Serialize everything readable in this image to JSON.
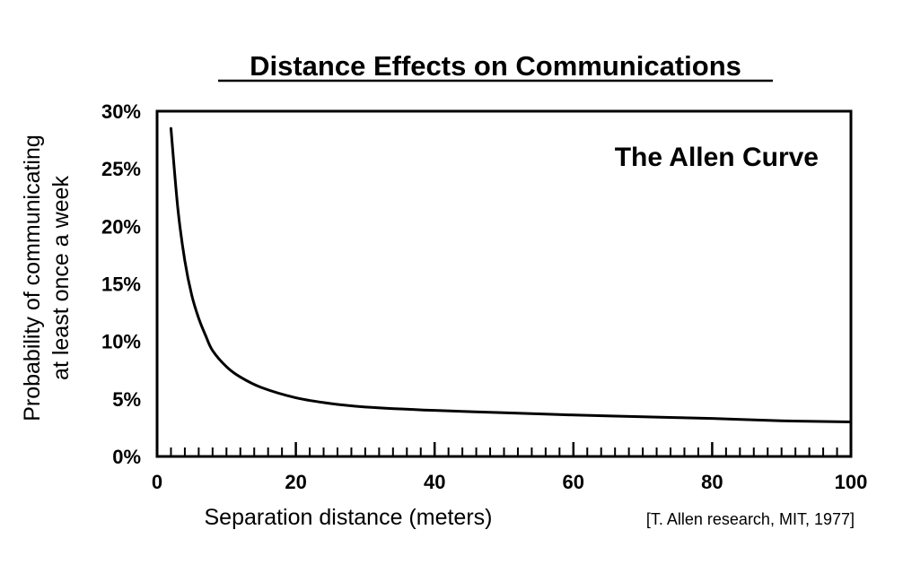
{
  "chart_data": {
    "type": "line",
    "title": "Distance Effects on Communications",
    "annotation": "The Allen Curve",
    "xlabel": "Separation distance (meters)",
    "ylabel_lines": [
      "Probability of communicating",
      "at least once a week"
    ],
    "source": "[T. Allen research, MIT, 1977]",
    "xlim": [
      0,
      100
    ],
    "ylim": [
      0,
      30
    ],
    "x_ticks": [
      0,
      20,
      40,
      60,
      80,
      100
    ],
    "x_tick_labels": [
      "0",
      "20",
      "40",
      "60",
      "80",
      "100"
    ],
    "y_ticks": [
      0,
      5,
      10,
      15,
      20,
      25,
      30
    ],
    "y_tick_labels": [
      "0%",
      "5%",
      "10%",
      "15%",
      "20%",
      "25%",
      "30%"
    ],
    "x_minor_step": 2,
    "grid": false,
    "series": [
      {
        "x": [
          2,
          3,
          4,
          5,
          6,
          7,
          8,
          10,
          12,
          15,
          20,
          25,
          30,
          40,
          50,
          60,
          70,
          80,
          90,
          100
        ],
        "y": [
          28.5,
          21.5,
          17.0,
          14.0,
          12.0,
          10.5,
          9.2,
          7.8,
          6.9,
          6.0,
          5.1,
          4.6,
          4.3,
          4.0,
          3.8,
          3.6,
          3.45,
          3.3,
          3.1,
          3.0
        ]
      }
    ]
  }
}
